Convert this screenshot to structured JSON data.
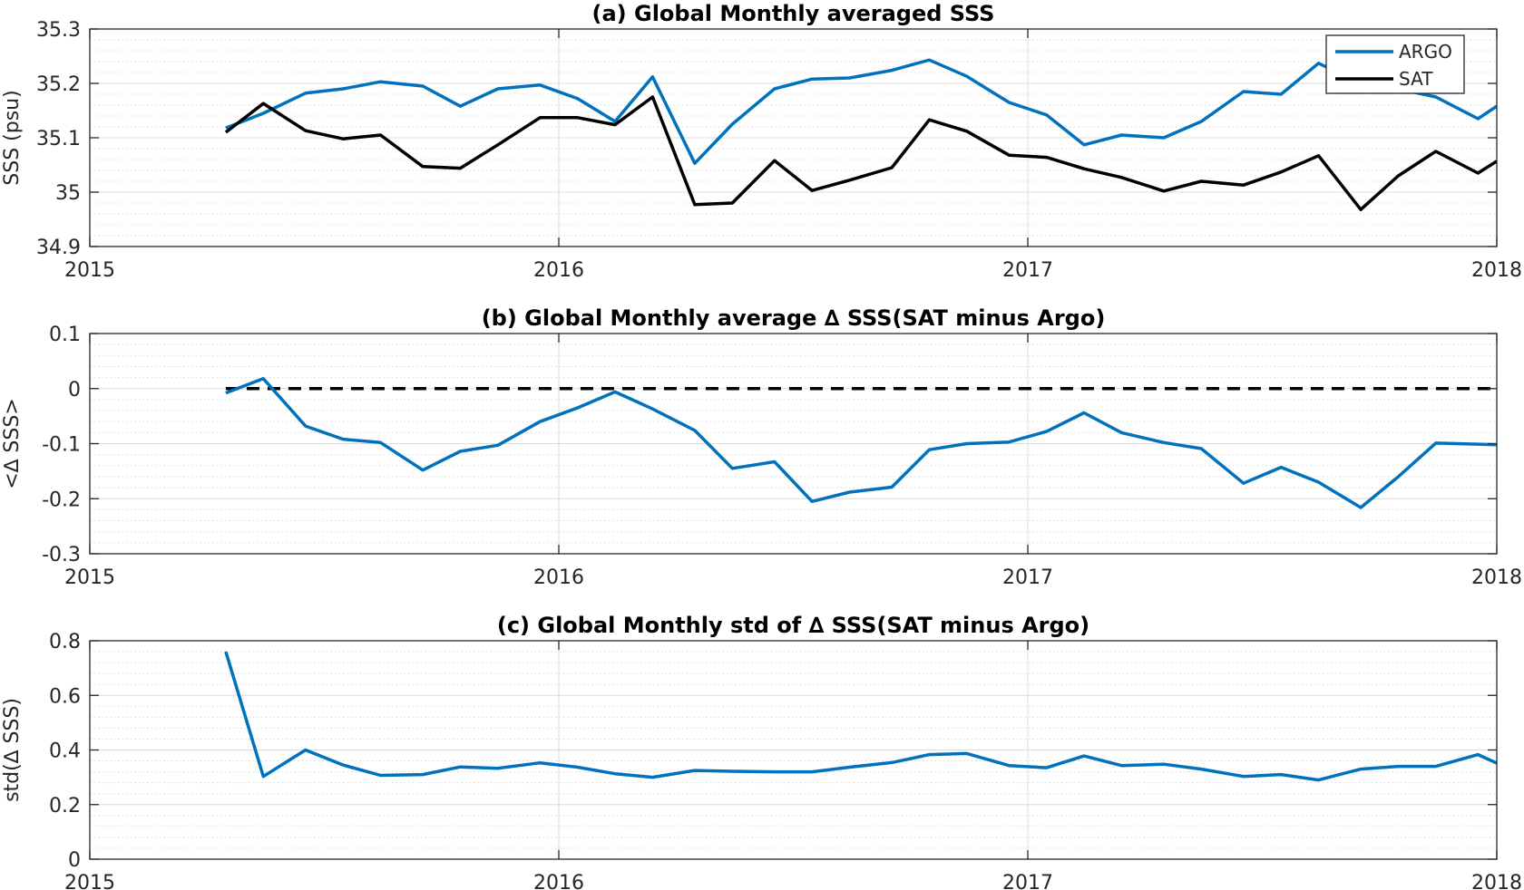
{
  "chart_data": [
    {
      "type": "line",
      "title": "(a) Global Monthly averaged SSS",
      "xlabel": "",
      "ylabel": "SSS (psu)",
      "xlim": [
        2015,
        2018
      ],
      "ylim": [
        34.9,
        35.3
      ],
      "x_ticks": [
        2015,
        2016,
        2017,
        2018
      ],
      "y_ticks": [
        34.9,
        35,
        35.1,
        35.2,
        35.3
      ],
      "grid": true,
      "legend": "top-right",
      "x": [
        2015.29,
        2015.37,
        2015.46,
        2015.54,
        2015.62,
        2015.71,
        2015.79,
        2015.87,
        2015.96,
        2016.04,
        2016.12,
        2016.2,
        2016.29,
        2016.37,
        2016.46,
        2016.54,
        2016.62,
        2016.71,
        2016.79,
        2016.87,
        2016.96,
        2017.04,
        2017.12,
        2017.2,
        2017.29,
        2017.37,
        2017.46,
        2017.54,
        2017.62,
        2017.71,
        2017.79,
        2017.87,
        2017.96,
        2018.0
      ],
      "series": [
        {
          "name": "ARGO",
          "color": "#0072BD",
          "values": [
            35.118,
            35.145,
            35.182,
            35.19,
            35.203,
            35.195,
            35.158,
            35.19,
            35.197,
            35.172,
            35.13,
            35.212,
            35.053,
            35.125,
            35.19,
            35.208,
            35.21,
            35.224,
            35.243,
            35.213,
            35.165,
            35.142,
            35.087,
            35.105,
            35.1,
            35.13,
            35.185,
            35.18,
            35.237,
            35.2,
            35.19,
            35.175,
            35.135,
            35.158
          ]
        },
        {
          "name": "SAT",
          "color": "#000000",
          "values": [
            35.11,
            35.163,
            35.113,
            35.098,
            35.105,
            35.047,
            35.044,
            35.087,
            35.137,
            35.137,
            35.124,
            35.175,
            34.977,
            34.98,
            35.058,
            35.003,
            35.022,
            35.045,
            35.133,
            35.112,
            35.068,
            35.064,
            35.043,
            35.027,
            35.002,
            35.02,
            35.013,
            35.037,
            35.067,
            34.968,
            35.03,
            35.075,
            35.035,
            35.057
          ]
        }
      ]
    },
    {
      "type": "line",
      "title": "(b) Global Monthly average ∆ SSS(SAT minus Argo)",
      "xlabel": "",
      "ylabel": "<∆ SSS>",
      "xlim": [
        2015,
        2018
      ],
      "ylim": [
        -0.3,
        0.1
      ],
      "x_ticks": [
        2015,
        2016,
        2017,
        2018
      ],
      "y_ticks": [
        -0.3,
        -0.2,
        -0.1,
        0,
        0.1
      ],
      "grid": true,
      "reference_line": {
        "y": 0,
        "x_range": [
          2015.29,
          2018.0
        ],
        "color": "#000000",
        "style": "dashed"
      },
      "x": [
        2015.29,
        2015.37,
        2015.46,
        2015.54,
        2015.62,
        2015.71,
        2015.79,
        2015.87,
        2015.96,
        2016.04,
        2016.12,
        2016.2,
        2016.29,
        2016.37,
        2016.46,
        2016.54,
        2016.62,
        2016.71,
        2016.79,
        2016.87,
        2016.96,
        2017.04,
        2017.12,
        2017.2,
        2017.29,
        2017.37,
        2017.46,
        2017.54,
        2017.62,
        2017.71,
        2017.79,
        2017.87,
        2017.96,
        2018.0
      ],
      "series": [
        {
          "color": "#0072BD",
          "values": [
            -0.008,
            0.018,
            -0.068,
            -0.092,
            -0.098,
            -0.148,
            -0.114,
            -0.103,
            -0.06,
            -0.035,
            -0.006,
            -0.037,
            -0.076,
            -0.145,
            -0.133,
            -0.205,
            -0.188,
            -0.179,
            -0.111,
            -0.1,
            -0.097,
            -0.078,
            -0.044,
            -0.08,
            -0.098,
            -0.109,
            -0.172,
            -0.143,
            -0.17,
            -0.216,
            -0.16,
            -0.099,
            -0.101,
            -0.102
          ]
        }
      ]
    },
    {
      "type": "line",
      "title": "(c) Global Monthly std of ∆ SSS(SAT minus Argo)",
      "xlabel": "",
      "ylabel": "std(∆ SSS)",
      "xlim": [
        2015,
        2018
      ],
      "ylim": [
        0,
        0.8
      ],
      "x_ticks": [
        2015,
        2016,
        2017,
        2018
      ],
      "y_ticks": [
        0,
        0.2,
        0.4,
        0.6,
        0.8
      ],
      "grid": true,
      "x": [
        2015.29,
        2015.37,
        2015.46,
        2015.54,
        2015.62,
        2015.71,
        2015.79,
        2015.87,
        2015.96,
        2016.04,
        2016.12,
        2016.2,
        2016.29,
        2016.37,
        2016.46,
        2016.54,
        2016.62,
        2016.71,
        2016.79,
        2016.87,
        2016.96,
        2017.04,
        2017.12,
        2017.2,
        2017.29,
        2017.37,
        2017.46,
        2017.54,
        2017.62,
        2017.71,
        2017.79,
        2017.87,
        2017.96,
        2018.0
      ],
      "series": [
        {
          "color": "#0072BD",
          "values": [
            0.76,
            0.303,
            0.4,
            0.345,
            0.307,
            0.31,
            0.338,
            0.333,
            0.353,
            0.337,
            0.313,
            0.3,
            0.325,
            0.322,
            0.32,
            0.32,
            0.337,
            0.354,
            0.383,
            0.387,
            0.343,
            0.335,
            0.378,
            0.343,
            0.348,
            0.33,
            0.303,
            0.31,
            0.29,
            0.33,
            0.34,
            0.34,
            0.383,
            0.352
          ]
        }
      ]
    }
  ]
}
